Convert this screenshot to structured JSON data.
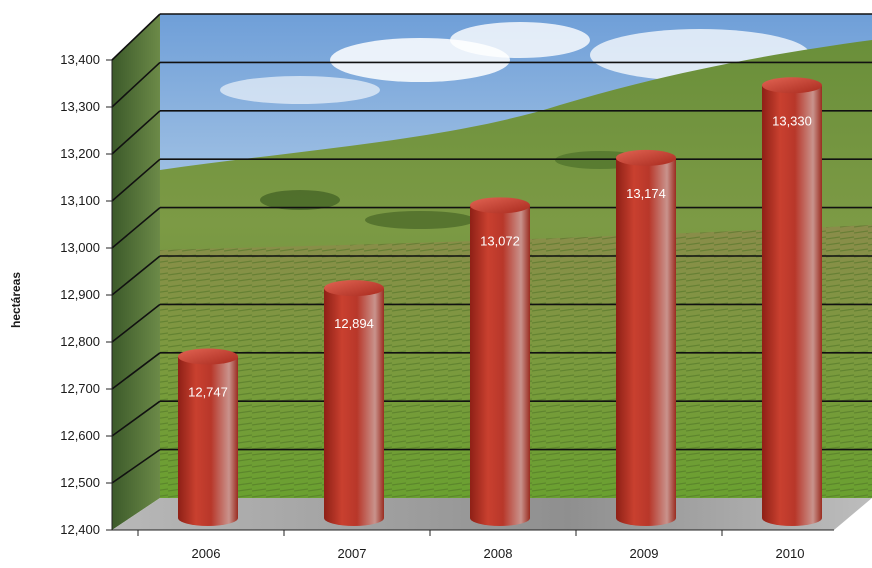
{
  "chart_data": {
    "type": "bar",
    "style": "3d-cylinder",
    "title": "",
    "xlabel": "",
    "ylabel": "hectáreas",
    "categories": [
      "2006",
      "2007",
      "2008",
      "2009",
      "2010"
    ],
    "values": [
      12747,
      12894,
      13072,
      13174,
      13330
    ],
    "data_labels": [
      "12,747",
      "12,894",
      "13,072",
      "13,174",
      "13,330"
    ],
    "y_ticks": [
      "12,400",
      "12,500",
      "12,600",
      "12,700",
      "12,800",
      "12,900",
      "13,000",
      "13,100",
      "13,200",
      "13,300",
      "13,400"
    ],
    "ylim": [
      12400,
      13400
    ],
    "grid": true,
    "legend": "none",
    "background": "vineyard-photo",
    "colors": {
      "bar": "#c0392b",
      "bar_light": "#e06a5a",
      "bar_dark": "#7a1a12",
      "floor": "#9a9a9a",
      "grid": "#111111"
    }
  }
}
